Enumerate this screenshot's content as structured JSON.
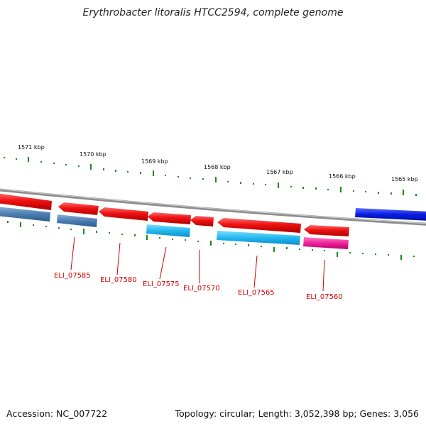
{
  "title": "Erythrobacter litoralis HTCC2594, complete genome",
  "footer": {
    "accession": "Accession: NC_007722",
    "topology": "Topology: circular; Length: 3,052,398 bp; Genes: 3,056"
  },
  "scale_labels": [
    "1571 kbp",
    "1570 kbp",
    "1569 kbp",
    "1568 kbp",
    "1567 kbp",
    "1566 kbp",
    "1565 kbp"
  ],
  "gene_labels": [
    "ELI_07585",
    "ELI_07580",
    "ELI_07575",
    "ELI_07570",
    "ELI_07565",
    "ELI_07560"
  ],
  "colors": {
    "forward_gene": "#ee1111",
    "reverse_gene_light": "#2bb8f0",
    "reverse_gene_steel": "#4a7db0",
    "reverse_gene_pink": "#ee2299",
    "highlight_gene": "#0a1de0",
    "backbone": "#888888",
    "tick": "#1a8a1a",
    "label": "#cc0000"
  }
}
